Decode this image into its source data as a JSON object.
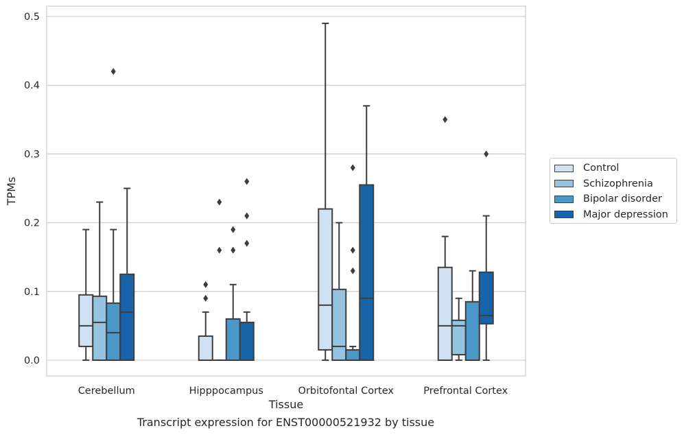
{
  "caption": "Transcript expression for ENST00000521932 by tissue",
  "chart_data": {
    "type": "boxplot",
    "xlabel": "Tissue",
    "ylabel": "TPMs",
    "ylim": [
      -0.023,
      0.515
    ],
    "yticks": [
      0.0,
      0.1,
      0.2,
      0.3,
      0.4,
      0.5
    ],
    "ytick_labels": [
      "0.0",
      "0.1",
      "0.2",
      "0.3",
      "0.4",
      "0.5"
    ],
    "grid": "horizontal",
    "legend_placement": "right",
    "categories": [
      "Cerebellum",
      "Hipppocampus",
      "Orbitofontal Cortex",
      "Prefrontal Cortex"
    ],
    "series": [
      {
        "name": "Control",
        "color": "#d0e1f2",
        "boxes": [
          {
            "whislo": 0.0,
            "q1": 0.02,
            "med": 0.05,
            "q3": 0.095,
            "whishi": 0.19,
            "fliers": []
          },
          {
            "whislo": 0.0,
            "q1": 0.0,
            "med": 0.0,
            "q3": 0.035,
            "whishi": 0.07,
            "fliers": [
              0.09,
              0.11
            ]
          },
          {
            "whislo": 0.0,
            "q1": 0.015,
            "med": 0.08,
            "q3": 0.22,
            "whishi": 0.49,
            "fliers": []
          },
          {
            "whislo": 0.0,
            "q1": 0.0,
            "med": 0.05,
            "q3": 0.135,
            "whishi": 0.18,
            "fliers": [
              0.35
            ]
          }
        ]
      },
      {
        "name": "Schizophrenia",
        "color": "#94c4df",
        "boxes": [
          {
            "whislo": 0.0,
            "q1": 0.0,
            "med": 0.055,
            "q3": 0.093,
            "whishi": 0.23,
            "fliers": []
          },
          {
            "whislo": 0.0,
            "q1": 0.0,
            "med": 0.0,
            "q3": 0.0,
            "whishi": 0.0,
            "fliers": [
              0.16,
              0.23
            ]
          },
          {
            "whislo": 0.0,
            "q1": 0.0,
            "med": 0.02,
            "q3": 0.103,
            "whishi": 0.2,
            "fliers": []
          },
          {
            "whislo": 0.0,
            "q1": 0.008,
            "med": 0.05,
            "q3": 0.058,
            "whishi": 0.09,
            "fliers": []
          }
        ]
      },
      {
        "name": "Bipolar disorder",
        "color": "#4a98c9",
        "boxes": [
          {
            "whislo": 0.0,
            "q1": 0.0,
            "med": 0.04,
            "q3": 0.083,
            "whishi": 0.19,
            "fliers": [
              0.42
            ]
          },
          {
            "whislo": 0.0,
            "q1": 0.0,
            "med": 0.0,
            "q3": 0.06,
            "whishi": 0.11,
            "fliers": [
              0.16,
              0.19
            ]
          },
          {
            "whislo": 0.0,
            "q1": 0.0,
            "med": 0.0,
            "q3": 0.015,
            "whishi": 0.02,
            "fliers": [
              0.13,
              0.16,
              0.28
            ]
          },
          {
            "whislo": 0.0,
            "q1": 0.0,
            "med": 0.0,
            "q3": 0.085,
            "whishi": 0.13,
            "fliers": []
          }
        ]
      },
      {
        "name": "Major depression",
        "color": "#1764ab",
        "boxes": [
          {
            "whislo": 0.0,
            "q1": 0.0,
            "med": 0.07,
            "q3": 0.125,
            "whishi": 0.25,
            "fliers": []
          },
          {
            "whislo": 0.0,
            "q1": 0.0,
            "med": 0.0,
            "q3": 0.055,
            "whishi": 0.07,
            "fliers": [
              0.17,
              0.21,
              0.26
            ]
          },
          {
            "whislo": 0.0,
            "q1": 0.0,
            "med": 0.09,
            "q3": 0.255,
            "whishi": 0.37,
            "fliers": []
          },
          {
            "whislo": 0.0,
            "q1": 0.053,
            "med": 0.065,
            "q3": 0.128,
            "whishi": 0.21,
            "fliers": [
              0.3
            ]
          }
        ]
      }
    ]
  }
}
